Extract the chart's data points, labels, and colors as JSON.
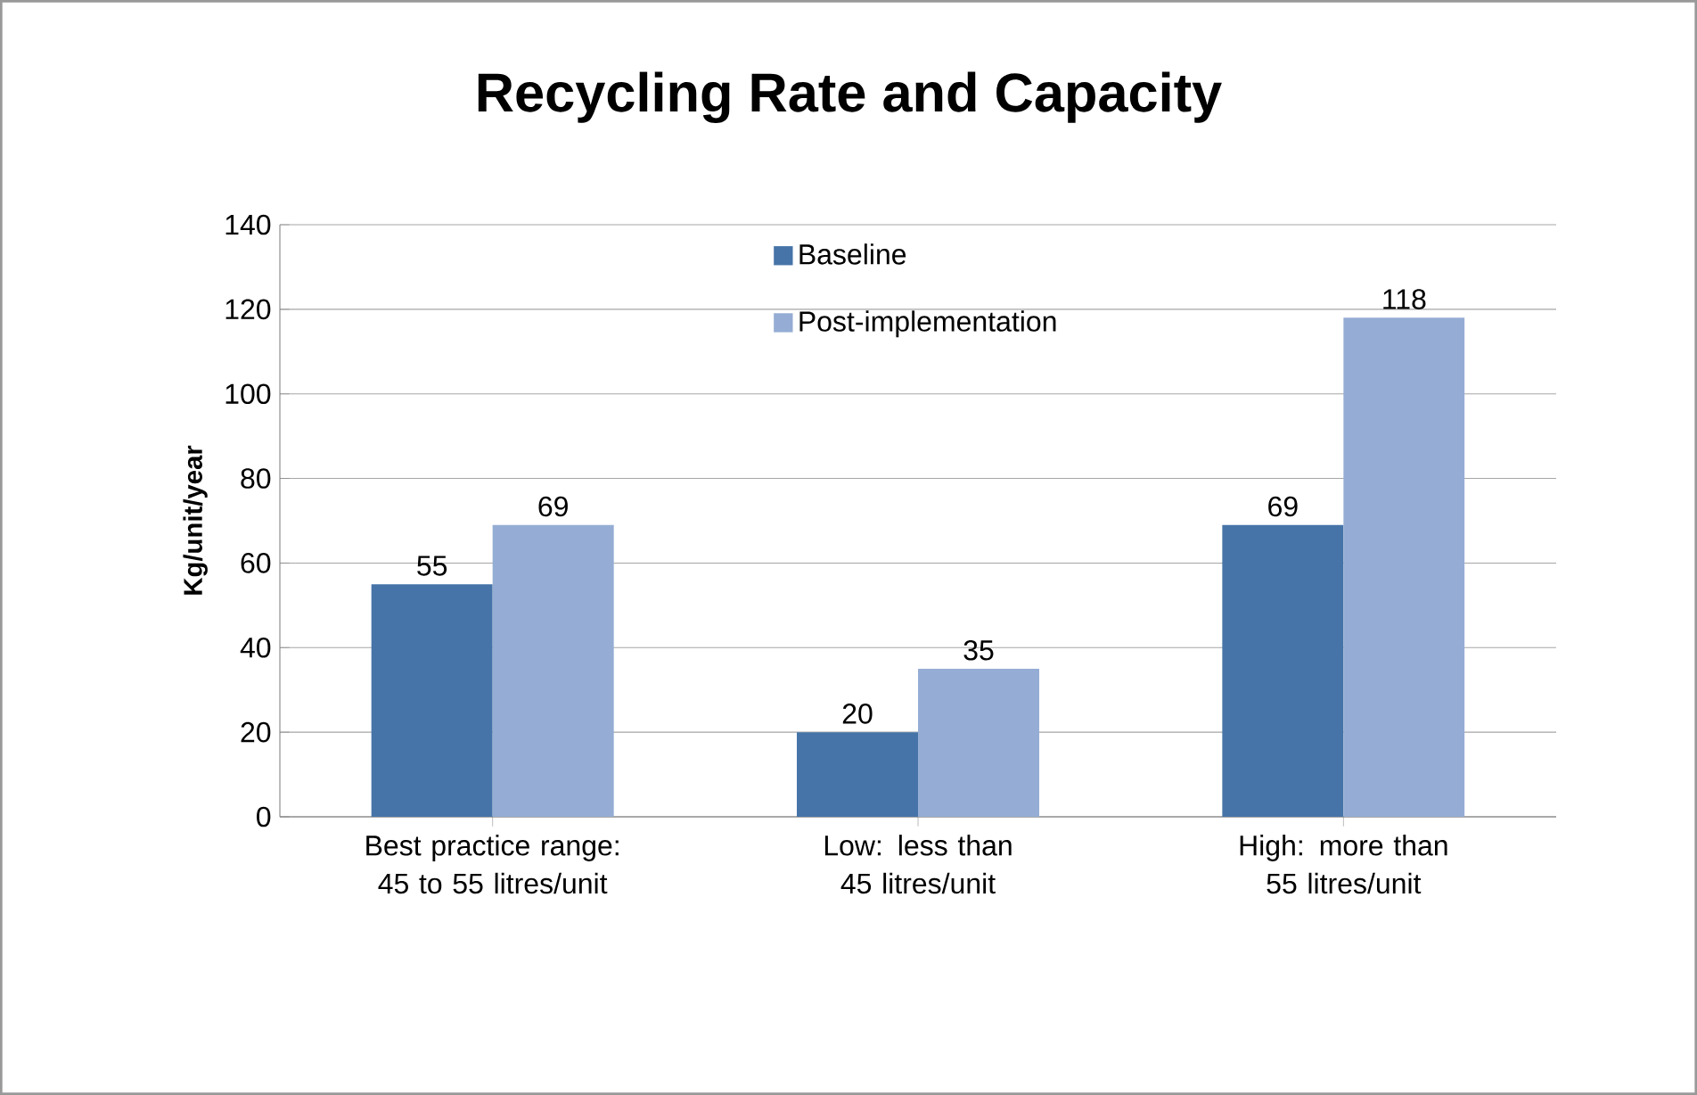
{
  "chart_data": {
    "type": "bar",
    "title": "Recycling Rate and Capacity",
    "ylabel": "Kg/unit/year",
    "categories": [
      "Best practice range: 45 to 55 litres/unit",
      "Low: less than 45 litres/unit",
      "High: more than 55 litres/unit"
    ],
    "series": [
      {
        "name": "Baseline",
        "color": "#4674a8",
        "values": [
          55,
          20,
          69
        ]
      },
      {
        "name": "Post-implementation",
        "color": "#95add4",
        "values": [
          69,
          35,
          118
        ]
      }
    ],
    "ylim": [
      0,
      140
    ],
    "yticks": [
      0,
      20,
      40,
      60,
      80,
      100,
      120,
      140
    ],
    "grid": "y",
    "legend": "top",
    "data_labels": true
  }
}
